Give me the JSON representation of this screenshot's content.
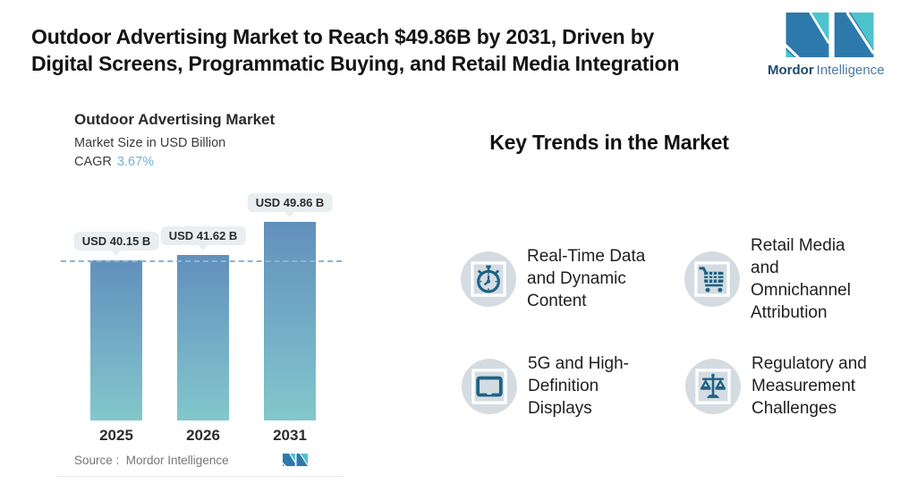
{
  "header": {
    "title_lines": [
      "Outdoor Advertising Market to Reach $49.86B by 2031, Driven by",
      "Digital Screens, Programmatic Buying, and Retail Media Integration"
    ],
    "logo": {
      "brand_bold": "Mordor",
      "brand_light": "Intelligence"
    }
  },
  "chart_data": {
    "type": "bar",
    "title": "Outdoor Advertising Market",
    "subtitle": "Market Size in USD Billion",
    "cagr_label": "CAGR",
    "cagr_value": "3.67%",
    "categories": [
      "2025",
      "2026",
      "2031"
    ],
    "values": [
      40.15,
      41.62,
      49.86
    ],
    "bar_labels": [
      "USD 40.15 B",
      "USD 41.62 B",
      "USD 49.86 B"
    ],
    "unit": "USD Billion",
    "ylim": [
      0,
      55
    ],
    "reference_line_value": 40.15,
    "grid": false,
    "source": "Source :  Mordor Intelligence"
  },
  "trends": {
    "heading": "Key Trends in the Market",
    "items": [
      {
        "icon": "stopwatch-icon",
        "label": "Real-Time Data and Dynamic Content",
        "lines": [
          "Real-Time Data",
          "and Dynamic",
          "Content"
        ]
      },
      {
        "icon": "shopping-cart-icon",
        "label": "Retail Media and Omnichannel Attribution",
        "lines": [
          "Retail Media",
          "and",
          "Omnichannel",
          "Attribution"
        ]
      },
      {
        "icon": "monitor-icon",
        "label": "5G and High-Definition Displays",
        "lines": [
          "5G and High-",
          "Definition",
          "Displays"
        ]
      },
      {
        "icon": "scales-icon",
        "label": "Regulatory and Measurement Challenges",
        "lines": [
          "Regulatory and",
          "Measurement",
          "Challenges"
        ]
      }
    ]
  },
  "colors": {
    "bar_top": "#6190bc",
    "bar_bottom": "#82c8cb",
    "dashed_line": "#8db5cd",
    "bubble_bg": "#e9eef1",
    "cagr_value": "#73b1d4",
    "icon": "#1c6383",
    "icon_circle_bg": "#d4dce2",
    "logo_teal": "#4cc3cd",
    "logo_blue": "#2e79ac"
  }
}
